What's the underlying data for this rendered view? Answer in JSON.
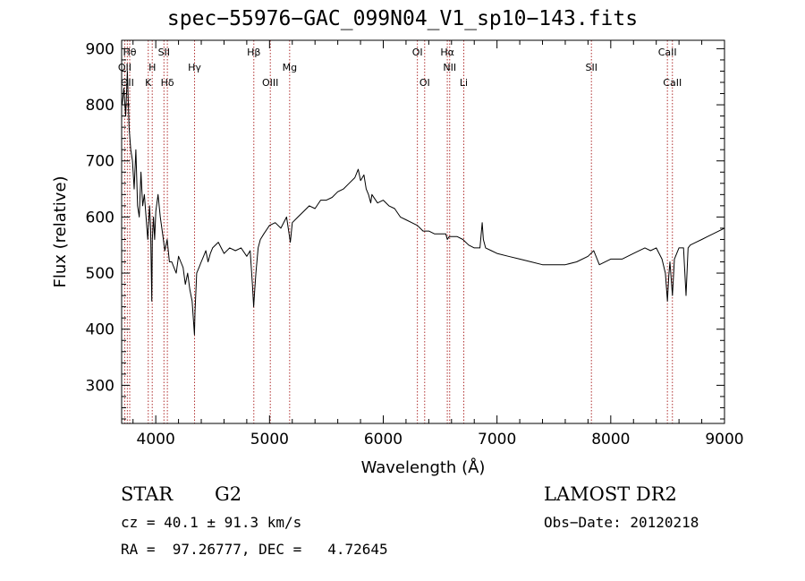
{
  "chart_data": {
    "type": "line",
    "title": "spec−55976−GAC_099N04_V1_sp10−143.fits",
    "xlabel": "Wavelength (Å)",
    "ylabel": "Flux (relative)",
    "xlim": [
      3700,
      9000
    ],
    "ylim": [
      232,
      915
    ],
    "xticks": [
      "4000",
      "5000",
      "6000",
      "7000",
      "8000",
      "9000"
    ],
    "yticks": [
      "300",
      "400",
      "500",
      "600",
      "700",
      "800",
      "900"
    ],
    "grid": false,
    "series": [
      {
        "x": [
          3705,
          3720,
          3735,
          3750,
          3765,
          3780,
          3795,
          3810,
          3825,
          3840,
          3855,
          3870,
          3885,
          3900,
          3915,
          3930,
          3945,
          3955,
          3965,
          3970,
          3980,
          3990,
          4000,
          4020,
          4040,
          4060,
          4080,
          4100,
          4120,
          4140,
          4160,
          4180,
          4200,
          4220,
          4240,
          4260,
          4280,
          4300,
          4320,
          4330,
          4340,
          4345,
          4360,
          4380,
          4400,
          4420,
          4440,
          4460,
          4480,
          4500,
          4550,
          4600,
          4650,
          4700,
          4750,
          4800,
          4830,
          4850,
          4861,
          4870,
          4880,
          4900,
          4920,
          4950,
          5000,
          5050,
          5100,
          5150,
          5183,
          5200,
          5250,
          5300,
          5350,
          5400,
          5450,
          5500,
          5550,
          5600,
          5650,
          5700,
          5750,
          5780,
          5800,
          5830,
          5850,
          5870,
          5890,
          5900,
          5950,
          6000,
          6050,
          6100,
          6150,
          6200,
          6250,
          6300,
          6350,
          6400,
          6450,
          6500,
          6550,
          6563,
          6580,
          6600,
          6650,
          6700,
          6750,
          6800,
          6850,
          6870,
          6880,
          6900,
          6950,
          7000,
          7100,
          7200,
          7300,
          7400,
          7500,
          7600,
          7700,
          7800,
          7850,
          7900,
          8000,
          8100,
          8200,
          8300,
          8350,
          8400,
          8450,
          8480,
          8498,
          8510,
          8520,
          8542,
          8560,
          8600,
          8640,
          8662,
          8680,
          8700,
          8750,
          8800,
          8850,
          8900,
          8950,
          9000
        ],
        "y": [
          800,
          830,
          780,
          860,
          760,
          720,
          700,
          650,
          720,
          620,
          600,
          680,
          620,
          640,
          600,
          560,
          620,
          580,
          450,
          560,
          600,
          560,
          610,
          640,
          600,
          570,
          540,
          560,
          520,
          520,
          510,
          500,
          530,
          520,
          510,
          480,
          500,
          470,
          450,
          420,
          390,
          430,
          500,
          510,
          520,
          530,
          540,
          520,
          535,
          545,
          555,
          535,
          545,
          540,
          545,
          530,
          540,
          480,
          440,
          470,
          500,
          545,
          560,
          570,
          585,
          590,
          580,
          600,
          555,
          590,
          600,
          610,
          620,
          615,
          630,
          630,
          635,
          645,
          650,
          660,
          670,
          685,
          665,
          675,
          650,
          640,
          625,
          640,
          625,
          630,
          620,
          615,
          600,
          595,
          590,
          585,
          575,
          575,
          570,
          570,
          570,
          560,
          565,
          565,
          565,
          560,
          550,
          545,
          545,
          590,
          560,
          545,
          540,
          535,
          530,
          525,
          520,
          515,
          515,
          515,
          520,
          530,
          540,
          515,
          525,
          525,
          535,
          545,
          540,
          545,
          525,
          500,
          450,
          495,
          520,
          460,
          525,
          545,
          545,
          460,
          545,
          550,
          555,
          560,
          565,
          570,
          575,
          580
        ]
      }
    ],
    "lines": [
      {
        "x": 3727,
        "label": "OII"
      },
      {
        "x": 3750,
        "label": "OII"
      },
      {
        "x": 3771,
        "label": "Hθ"
      },
      {
        "x": 3934,
        "label": "K"
      },
      {
        "x": 3969,
        "label": "H"
      },
      {
        "x": 4072,
        "label": "SII"
      },
      {
        "x": 4102,
        "label": "Hδ"
      },
      {
        "x": 4341,
        "label": "Hγ"
      },
      {
        "x": 4862,
        "label": "Hβ"
      },
      {
        "x": 5007,
        "label": "OIII"
      },
      {
        "x": 5177,
        "label": "Mg"
      },
      {
        "x": 6300,
        "label": "OI"
      },
      {
        "x": 6364,
        "label": "OI"
      },
      {
        "x": 6563,
        "label": "Hα"
      },
      {
        "x": 6584,
        "label": "NII"
      },
      {
        "x": 6708,
        "label": "Li"
      },
      {
        "x": 7830,
        "label": "SII"
      },
      {
        "x": 8498,
        "label": "CaII"
      },
      {
        "x": 8542,
        "label": "CaII"
      }
    ]
  },
  "info": {
    "object_class": "STAR",
    "subclass": "G2",
    "redshift": "cz = 40.1 ± 91.3 km/s",
    "coords": "RA =  97.26777, DEC =   4.72645",
    "survey": "LAMOST DR2",
    "obs_date": "Obs−Date: 20120218"
  },
  "colors": {
    "line_marker": "#b03030",
    "spectrum": "#000000"
  }
}
